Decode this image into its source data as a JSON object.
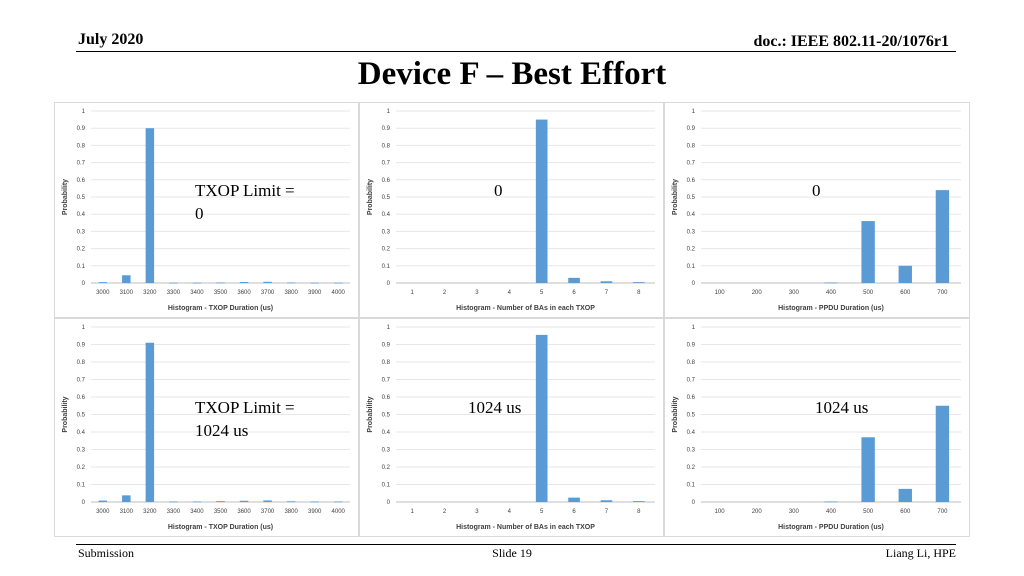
{
  "header": {
    "date": "July 2020",
    "doc": "doc.: IEEE 802.11-20/1076r1"
  },
  "title": "Device F – Best Effort",
  "colors": {
    "bar": "#5b9bd5",
    "grid": "#e7e7e7",
    "axis": "#bfbfbf"
  },
  "overlays": {
    "r1c1": [
      "TXOP Limit =",
      "0"
    ],
    "r1c2": [
      "0"
    ],
    "r1c3": [
      "0"
    ],
    "r2c1": [
      "TXOP Limit =",
      "1024 us"
    ],
    "r2c2": [
      "1024 us"
    ],
    "r2c3": [
      "1024 us"
    ]
  },
  "footer": {
    "left": "Submission",
    "center": "Slide 19",
    "right": "Liang Li, HPE"
  },
  "chart_data": [
    {
      "id": "r1c1",
      "type": "bar",
      "categories": [
        "3000",
        "3100",
        "3200",
        "3300",
        "3400",
        "3500",
        "3600",
        "3700",
        "3800",
        "3900",
        "4000"
      ],
      "values": [
        0.005,
        0.045,
        0.9,
        0.002,
        0.002,
        0.003,
        0.006,
        0.007,
        0.003,
        0.002,
        0.002
      ],
      "xlabel": "Histogram - TXOP Duration (us)",
      "ylabel": "Probability",
      "ylim": [
        0,
        1
      ],
      "yticks": [
        "0",
        "0.1",
        "0.2",
        "0.3",
        "0.4",
        "0.5",
        "0.6",
        "0.7",
        "0.8",
        "0.9",
        "1"
      ],
      "grid": true
    },
    {
      "id": "r1c2",
      "type": "bar",
      "categories": [
        "1",
        "2",
        "3",
        "4",
        "5",
        "6",
        "7",
        "8"
      ],
      "values": [
        0,
        0,
        0,
        0,
        0.95,
        0.03,
        0.01,
        0.005
      ],
      "xlabel": "Histogram - Number of BAs in each TXOP",
      "ylabel": "Probability",
      "ylim": [
        0,
        1
      ],
      "yticks": [
        "0",
        "0.1",
        "0.2",
        "0.3",
        "0.4",
        "0.5",
        "0.6",
        "0.7",
        "0.8",
        "0.9",
        "1"
      ],
      "grid": true
    },
    {
      "id": "r1c3",
      "type": "bar",
      "categories": [
        "100",
        "200",
        "300",
        "400",
        "500",
        "600",
        "700"
      ],
      "values": [
        0,
        0,
        0,
        0.003,
        0.36,
        0.1,
        0.54
      ],
      "xlabel": "Histogram - PPDU Duration (us)",
      "ylabel": "Probability",
      "ylim": [
        0,
        1
      ],
      "yticks": [
        "0",
        "0.1",
        "0.2",
        "0.3",
        "0.4",
        "0.5",
        "0.6",
        "0.7",
        "0.8",
        "0.9",
        "1"
      ],
      "grid": true
    },
    {
      "id": "r2c1",
      "type": "bar",
      "categories": [
        "3000",
        "3100",
        "3200",
        "3300",
        "3400",
        "3500",
        "3600",
        "3700",
        "3800",
        "3900",
        "4000"
      ],
      "values": [
        0.008,
        0.038,
        0.91,
        0.003,
        0.003,
        0.005,
        0.007,
        0.009,
        0.004,
        0.003,
        0.003
      ],
      "xlabel": "Histogram - TXOP Duration (us)",
      "ylabel": "Probability",
      "ylim": [
        0,
        1
      ],
      "yticks": [
        "0",
        "0.1",
        "0.2",
        "0.3",
        "0.4",
        "0.5",
        "0.6",
        "0.7",
        "0.8",
        "0.9",
        "1"
      ],
      "grid": true
    },
    {
      "id": "r2c2",
      "type": "bar",
      "categories": [
        "1",
        "2",
        "3",
        "4",
        "5",
        "6",
        "7",
        "8"
      ],
      "values": [
        0,
        0,
        0,
        0,
        0.955,
        0.025,
        0.01,
        0.005
      ],
      "xlabel": "Histogram - Number of BAs in each TXOP",
      "ylabel": "Probability",
      "ylim": [
        0,
        1
      ],
      "yticks": [
        "0",
        "0.1",
        "0.2",
        "0.3",
        "0.4",
        "0.5",
        "0.6",
        "0.7",
        "0.8",
        "0.9",
        "1"
      ],
      "grid": true
    },
    {
      "id": "r2c3",
      "type": "bar",
      "categories": [
        "100",
        "200",
        "300",
        "400",
        "500",
        "600",
        "700"
      ],
      "values": [
        0,
        0,
        0,
        0.003,
        0.37,
        0.075,
        0.55
      ],
      "xlabel": "Histogram - PPDU Duration (us)",
      "ylabel": "Probability",
      "ylim": [
        0,
        1
      ],
      "yticks": [
        "0",
        "0.1",
        "0.2",
        "0.3",
        "0.4",
        "0.5",
        "0.6",
        "0.7",
        "0.8",
        "0.9",
        "1"
      ],
      "grid": true
    }
  ]
}
